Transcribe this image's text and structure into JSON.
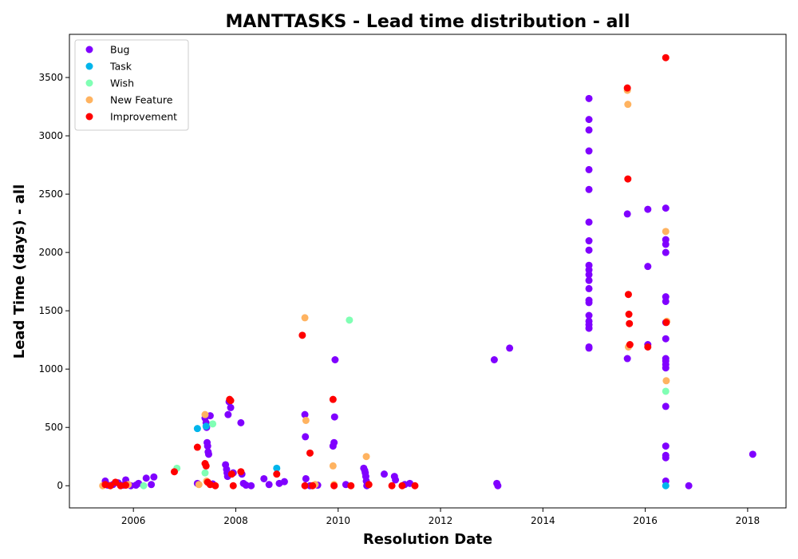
{
  "chart_data": {
    "type": "scatter",
    "title": "MANTTASKS - Lead time distribution - all",
    "xlabel": "Resolution Date",
    "ylabel": "Lead Time (days) - all",
    "xlim": [
      2004.75,
      2018.75
    ],
    "ylim": [
      -190,
      3870
    ],
    "xticks": [
      2006,
      2008,
      2010,
      2012,
      2014,
      2016,
      2018
    ],
    "xtick_labels": [
      "2006",
      "2008",
      "2010",
      "2012",
      "2014",
      "2016",
      "2018"
    ],
    "yticks": [
      0,
      500,
      1000,
      1500,
      2000,
      2500,
      3000,
      3500
    ],
    "ytick_labels": [
      "0",
      "500",
      "1000",
      "1500",
      "2000",
      "2500",
      "3000",
      "3500"
    ],
    "grid": false,
    "legend_position": "top-left",
    "series": [
      {
        "name": "Bug",
        "color": "#8000ff",
        "points": [
          [
            2005.45,
            40
          ],
          [
            2005.5,
            5
          ],
          [
            2005.6,
            10
          ],
          [
            2005.7,
            25
          ],
          [
            2005.8,
            5
          ],
          [
            2005.85,
            50
          ],
          [
            2005.95,
            0
          ],
          [
            2006.05,
            5
          ],
          [
            2006.1,
            20
          ],
          [
            2006.25,
            65
          ],
          [
            2006.35,
            10
          ],
          [
            2006.4,
            75
          ],
          [
            2007.25,
            20
          ],
          [
            2007.4,
            580
          ],
          [
            2007.42,
            540
          ],
          [
            2007.43,
            500
          ],
          [
            2007.44,
            370
          ],
          [
            2007.45,
            340
          ],
          [
            2007.46,
            290
          ],
          [
            2007.47,
            270
          ],
          [
            2007.5,
            600
          ],
          [
            2007.55,
            15
          ],
          [
            2007.8,
            180
          ],
          [
            2007.82,
            140
          ],
          [
            2007.83,
            110
          ],
          [
            2007.84,
            80
          ],
          [
            2007.85,
            610
          ],
          [
            2007.87,
            720
          ],
          [
            2007.9,
            670
          ],
          [
            2007.95,
            110
          ],
          [
            2008.1,
            540
          ],
          [
            2008.12,
            100
          ],
          [
            2008.15,
            20
          ],
          [
            2008.2,
            5
          ],
          [
            2008.3,
            0
          ],
          [
            2008.55,
            60
          ],
          [
            2008.65,
            10
          ],
          [
            2008.85,
            20
          ],
          [
            2008.95,
            35
          ],
          [
            2009.35,
            610
          ],
          [
            2009.36,
            420
          ],
          [
            2009.37,
            60
          ],
          [
            2009.45,
            0
          ],
          [
            2009.6,
            5
          ],
          [
            2009.9,
            340
          ],
          [
            2009.92,
            370
          ],
          [
            2009.93,
            590
          ],
          [
            2009.94,
            1080
          ],
          [
            2010.15,
            10
          ],
          [
            2010.5,
            150
          ],
          [
            2010.52,
            130
          ],
          [
            2010.53,
            110
          ],
          [
            2010.54,
            80
          ],
          [
            2010.55,
            40
          ],
          [
            2010.56,
            0
          ],
          [
            2010.9,
            100
          ],
          [
            2011.1,
            80
          ],
          [
            2011.12,
            50
          ],
          [
            2011.3,
            10
          ],
          [
            2011.4,
            20
          ],
          [
            2013.05,
            1080
          ],
          [
            2013.1,
            20
          ],
          [
            2013.12,
            0
          ],
          [
            2013.35,
            1180
          ],
          [
            2014.9,
            3320
          ],
          [
            2014.9,
            3140
          ],
          [
            2014.9,
            3050
          ],
          [
            2014.9,
            2870
          ],
          [
            2014.9,
            2710
          ],
          [
            2014.9,
            2540
          ],
          [
            2014.9,
            2260
          ],
          [
            2014.9,
            2100
          ],
          [
            2014.9,
            2020
          ],
          [
            2014.9,
            1890
          ],
          [
            2014.9,
            1850
          ],
          [
            2014.9,
            1810
          ],
          [
            2014.9,
            1760
          ],
          [
            2014.9,
            1690
          ],
          [
            2014.9,
            1590
          ],
          [
            2014.9,
            1570
          ],
          [
            2014.9,
            1460
          ],
          [
            2014.9,
            1410
          ],
          [
            2014.9,
            1380
          ],
          [
            2014.9,
            1350
          ],
          [
            2014.9,
            1190
          ],
          [
            2014.9,
            1180
          ],
          [
            2015.65,
            2330
          ],
          [
            2015.65,
            1090
          ],
          [
            2016.05,
            2370
          ],
          [
            2016.05,
            1880
          ],
          [
            2016.05,
            1210
          ],
          [
            2016.4,
            2380
          ],
          [
            2016.4,
            2110
          ],
          [
            2016.4,
            2070
          ],
          [
            2016.4,
            2000
          ],
          [
            2016.4,
            1620
          ],
          [
            2016.4,
            1580
          ],
          [
            2016.4,
            1400
          ],
          [
            2016.4,
            1260
          ],
          [
            2016.4,
            1090
          ],
          [
            2016.4,
            1070
          ],
          [
            2016.4,
            1040
          ],
          [
            2016.4,
            1010
          ],
          [
            2016.4,
            680
          ],
          [
            2016.4,
            340
          ],
          [
            2016.4,
            260
          ],
          [
            2016.4,
            240
          ],
          [
            2016.4,
            40
          ],
          [
            2016.85,
            0
          ],
          [
            2018.1,
            270
          ]
        ]
      },
      {
        "name": "Task",
        "color": "#00b5eb",
        "points": [
          [
            2007.25,
            490
          ],
          [
            2007.42,
            510
          ],
          [
            2008.8,
            150
          ],
          [
            2016.4,
            0
          ]
        ]
      },
      {
        "name": "Wish",
        "color": "#80ffb4",
        "points": [
          [
            2006.2,
            0
          ],
          [
            2006.85,
            150
          ],
          [
            2007.4,
            110
          ],
          [
            2007.55,
            530
          ],
          [
            2010.22,
            1420
          ],
          [
            2016.4,
            810
          ]
        ]
      },
      {
        "name": "New Feature",
        "color": "#ffb360",
        "points": [
          [
            2005.4,
            0
          ],
          [
            2005.9,
            10
          ],
          [
            2007.28,
            10
          ],
          [
            2007.4,
            610
          ],
          [
            2007.43,
            40
          ],
          [
            2009.35,
            1440
          ],
          [
            2009.37,
            560
          ],
          [
            2009.55,
            10
          ],
          [
            2009.9,
            170
          ],
          [
            2009.92,
            10
          ],
          [
            2010.55,
            250
          ],
          [
            2015.65,
            3390
          ],
          [
            2015.66,
            3270
          ],
          [
            2015.67,
            1190
          ],
          [
            2016.4,
            2180
          ],
          [
            2016.41,
            900
          ],
          [
            2016.42,
            1410
          ]
        ]
      },
      {
        "name": "Improvement",
        "color": "#ff0000",
        "points": [
          [
            2005.45,
            10
          ],
          [
            2005.55,
            0
          ],
          [
            2005.65,
            30
          ],
          [
            2005.75,
            0
          ],
          [
            2005.85,
            5
          ],
          [
            2006.8,
            120
          ],
          [
            2007.25,
            330
          ],
          [
            2007.4,
            190
          ],
          [
            2007.42,
            170
          ],
          [
            2007.45,
            30
          ],
          [
            2007.5,
            10
          ],
          [
            2007.6,
            0
          ],
          [
            2007.88,
            740
          ],
          [
            2007.9,
            730
          ],
          [
            2007.92,
            100
          ],
          [
            2007.95,
            0
          ],
          [
            2008.1,
            120
          ],
          [
            2008.8,
            100
          ],
          [
            2009.3,
            1290
          ],
          [
            2009.35,
            0
          ],
          [
            2009.45,
            280
          ],
          [
            2009.5,
            0
          ],
          [
            2009.9,
            740
          ],
          [
            2009.92,
            0
          ],
          [
            2010.25,
            0
          ],
          [
            2010.6,
            10
          ],
          [
            2011.05,
            0
          ],
          [
            2011.25,
            0
          ],
          [
            2011.5,
            0
          ],
          [
            2015.65,
            3410
          ],
          [
            2015.66,
            2630
          ],
          [
            2015.67,
            1640
          ],
          [
            2015.68,
            1470
          ],
          [
            2015.69,
            1390
          ],
          [
            2015.7,
            1210
          ],
          [
            2016.05,
            1190
          ],
          [
            2016.4,
            3670
          ],
          [
            2016.41,
            1400
          ]
        ]
      }
    ]
  }
}
